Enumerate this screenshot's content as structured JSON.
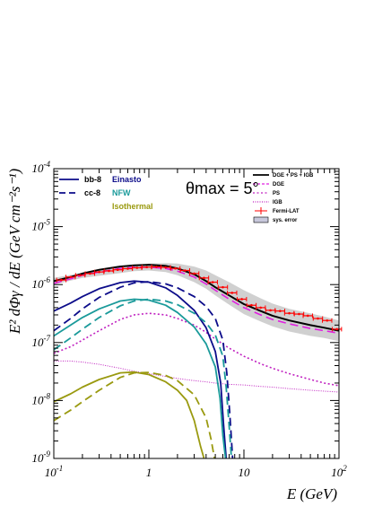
{
  "chart_data": {
    "type": "line",
    "xscale": "log",
    "yscale": "log",
    "xlim": [
      0.1,
      100
    ],
    "ylim": [
      1e-09,
      0.0001
    ],
    "xlabel": "E (GeV)",
    "ylabel": "E² dΦγ / dE (GeV cm⁻²s⁻¹)",
    "annotation": "θmax = 5°",
    "x_ticks": [
      {
        "v": 0.1,
        "base": "10",
        "exp": "-1"
      },
      {
        "v": 1,
        "base": "1",
        "exp": ""
      },
      {
        "v": 10,
        "base": "10",
        "exp": ""
      },
      {
        "v": 100,
        "base": "10",
        "exp": "2"
      }
    ],
    "y_ticks": [
      {
        "v": 1e-09,
        "base": "10",
        "exp": "-9"
      },
      {
        "v": 1e-08,
        "base": "10",
        "exp": "-8"
      },
      {
        "v": 1e-07,
        "base": "10",
        "exp": "-7"
      },
      {
        "v": 1e-06,
        "base": "10",
        "exp": "-6"
      },
      {
        "v": 1e-05,
        "base": "10",
        "exp": "-5"
      },
      {
        "v": 0.0001,
        "base": "10",
        "exp": "-4"
      }
    ],
    "legend_left": {
      "styles": [
        {
          "label": "bb-8",
          "dash": "solid"
        },
        {
          "label": "cc-8",
          "dash": "dashed"
        }
      ],
      "profiles": [
        {
          "label": "Einasto",
          "color": "#0c0c8a"
        },
        {
          "label": "NFW",
          "color": "#1a9a9a"
        },
        {
          "label": "Isothermal",
          "color": "#9a9a10"
        }
      ]
    },
    "legend_right": [
      {
        "label": "DGE + PS + IGB",
        "kind": "line",
        "color": "#000000",
        "dash": "solid"
      },
      {
        "label": "DGE",
        "kind": "line",
        "color": "#e020e0",
        "dash": "dashed"
      },
      {
        "label": "PS",
        "kind": "line",
        "color": "#c020c0",
        "dash": "dotted"
      },
      {
        "label": "IGB",
        "kind": "line",
        "color": "#c020c0",
        "dash": "finedot"
      },
      {
        "label": "Fermi-LAT",
        "kind": "marker",
        "color": "#ff0000"
      },
      {
        "label": "sys. error",
        "kind": "box",
        "color": "#c8c8dc"
      }
    ],
    "series": [
      {
        "name": "DGE + PS + IGB",
        "color": "#000000",
        "dash": "solid",
        "width": 2,
        "x": [
          0.1,
          0.15,
          0.2,
          0.3,
          0.5,
          0.7,
          1,
          1.5,
          2,
          3,
          4,
          5,
          7,
          10,
          15,
          20,
          30,
          50,
          70,
          100
        ],
        "y": [
          1.15e-06,
          1.35e-06,
          1.55e-06,
          1.8e-06,
          2.05e-06,
          2.15e-06,
          2.2e-06,
          2.1e-06,
          1.9e-06,
          1.5e-06,
          1.15e-06,
          9e-07,
          6.5e-07,
          4.6e-07,
          3.5e-07,
          2.9e-07,
          2.4e-07,
          2e-07,
          1.8e-07,
          1.6e-07
        ]
      },
      {
        "name": "DGE",
        "color": "#e020e0",
        "dash": "dashed",
        "width": 1.6,
        "x": [
          0.1,
          0.15,
          0.2,
          0.3,
          0.5,
          0.7,
          1,
          1.5,
          2,
          3,
          4,
          5,
          7,
          10,
          15,
          20,
          30,
          50,
          70,
          100
        ],
        "y": [
          1.05e-06,
          1.25e-06,
          1.45e-06,
          1.65e-06,
          1.9e-06,
          1.98e-06,
          2e-06,
          1.9e-06,
          1.7e-06,
          1.35e-06,
          1.02e-06,
          8e-07,
          5.6e-07,
          4e-07,
          3e-07,
          2.5e-07,
          2.1e-07,
          1.75e-07,
          1.6e-07,
          1.45e-07
        ]
      },
      {
        "name": "PS",
        "color": "#c020c0",
        "dash": "dotted",
        "width": 1.6,
        "x": [
          0.1,
          0.15,
          0.2,
          0.3,
          0.5,
          0.7,
          1,
          1.5,
          2,
          3,
          4,
          5,
          7,
          10,
          15,
          20,
          30,
          50,
          70,
          100
        ],
        "y": [
          6.5e-08,
          8.5e-08,
          1.1e-07,
          1.6e-07,
          2.5e-07,
          3e-07,
          3.2e-07,
          3e-07,
          2.6e-07,
          2e-07,
          1.5e-07,
          1.15e-07,
          8e-08,
          5.8e-08,
          4.3e-08,
          3.6e-08,
          2.9e-08,
          2.3e-08,
          2e-08,
          1.8e-08
        ]
      },
      {
        "name": "IGB",
        "color": "#c020c0",
        "dash": "finedot",
        "width": 1,
        "x": [
          0.1,
          0.15,
          0.2,
          0.3,
          0.5,
          0.7,
          1,
          1.5,
          2,
          3,
          4,
          5,
          7,
          10,
          15,
          20,
          30,
          50,
          70,
          100
        ],
        "y": [
          4.8e-08,
          4.8e-08,
          4.6e-08,
          4.2e-08,
          3.6e-08,
          3.2e-08,
          2.9e-08,
          2.6e-08,
          2.4e-08,
          2.2e-08,
          2.1e-08,
          2e-08,
          1.9e-08,
          1.85e-08,
          1.75e-08,
          1.7e-08,
          1.6e-08,
          1.5e-08,
          1.45e-08,
          1.4e-08
        ]
      },
      {
        "name": "bb-8 Einasto",
        "color": "#0c0c8a",
        "dash": "solid",
        "width": 1.8,
        "x": [
          0.1,
          0.15,
          0.2,
          0.3,
          0.5,
          0.7,
          1,
          1.5,
          2,
          3,
          4,
          5,
          5.7,
          6.1,
          6.5
        ],
        "y": [
          3.5e-07,
          4.8e-07,
          6.2e-07,
          8.5e-07,
          1.08e-06,
          1.15e-06,
          1.1e-06,
          8.8e-07,
          6.5e-07,
          3.6e-07,
          1.8e-07,
          7e-08,
          2e-08,
          4e-09,
          1e-09
        ]
      },
      {
        "name": "cc-8 Einasto",
        "color": "#0c0c8a",
        "dash": "dashed",
        "width": 1.8,
        "x": [
          0.1,
          0.15,
          0.2,
          0.3,
          0.5,
          0.7,
          1,
          1.5,
          2,
          3,
          4,
          5,
          6,
          6.6,
          7.1,
          7.6
        ],
        "y": [
          1.6e-07,
          2.6e-07,
          3.8e-07,
          6e-07,
          9e-07,
          1.07e-06,
          1.12e-06,
          1.03e-06,
          8.8e-07,
          6.2e-07,
          4.2e-07,
          2.6e-07,
          1.1e-07,
          3e-08,
          6e-09,
          1e-09
        ]
      },
      {
        "name": "bb-8 NFW",
        "color": "#1a9a9a",
        "dash": "solid",
        "width": 1.8,
        "x": [
          0.1,
          0.15,
          0.2,
          0.3,
          0.5,
          0.7,
          1,
          1.5,
          2,
          3,
          4,
          5,
          5.6,
          6.0,
          6.4
        ],
        "y": [
          1.3e-07,
          2e-07,
          2.7e-07,
          3.8e-07,
          5.2e-07,
          5.6e-07,
          5.4e-07,
          4.4e-07,
          3.3e-07,
          1.85e-07,
          9.5e-08,
          3.8e-08,
          1.1e-08,
          2.5e-09,
          1e-09
        ]
      },
      {
        "name": "cc-8 NFW",
        "color": "#1a9a9a",
        "dash": "dashed",
        "width": 1.8,
        "x": [
          0.1,
          0.15,
          0.2,
          0.3,
          0.5,
          0.7,
          1,
          1.5,
          2,
          3,
          4,
          5,
          6,
          6.5,
          7.0,
          7.4
        ],
        "y": [
          7.5e-08,
          1.2e-07,
          1.7e-07,
          2.7e-07,
          4.3e-07,
          5.2e-07,
          5.6e-07,
          5.2e-07,
          4.5e-07,
          3.2e-07,
          2.2e-07,
          1.35e-07,
          5.8e-08,
          1.7e-08,
          3.5e-09,
          1e-09
        ]
      },
      {
        "name": "bb-8 Isothermal",
        "color": "#9a9a10",
        "dash": "solid",
        "width": 1.8,
        "x": [
          0.1,
          0.15,
          0.2,
          0.3,
          0.5,
          0.7,
          1,
          1.5,
          2,
          2.5,
          3,
          3.5,
          3.8
        ],
        "y": [
          9.5e-09,
          1.3e-08,
          1.7e-08,
          2.3e-08,
          3e-08,
          3.1e-08,
          2.8e-08,
          2.1e-08,
          1.5e-08,
          1e-08,
          4.5e-09,
          1.6e-09,
          1e-09
        ]
      },
      {
        "name": "cc-8 Isothermal",
        "color": "#9a9a10",
        "dash": "dashed",
        "width": 1.8,
        "x": [
          0.1,
          0.15,
          0.2,
          0.3,
          0.5,
          0.7,
          1,
          1.5,
          2,
          3,
          4,
          4.5,
          4.9
        ],
        "y": [
          4.5e-09,
          6.8e-09,
          9.5e-09,
          1.5e-08,
          2.5e-08,
          3e-08,
          3.05e-08,
          2.7e-08,
          2.2e-08,
          1.25e-08,
          5e-09,
          2.2e-09,
          1e-09
        ]
      }
    ],
    "band": {
      "name": "sys. error",
      "x": [
        0.1,
        0.2,
        0.4,
        0.7,
        1,
        1.5,
        2,
        3,
        4,
        5,
        7,
        10,
        15,
        20,
        30,
        50,
        70,
        100
      ],
      "low": [
        1e-06,
        1.3e-06,
        1.5e-06,
        1.7e-06,
        1.75e-06,
        1.65e-06,
        1.45e-06,
        1.1e-06,
        8.5e-07,
        6.5e-07,
        4.5e-07,
        3.1e-07,
        2.3e-07,
        1.9e-07,
        1.55e-07,
        1.3e-07,
        1.2e-07,
        1.05e-07
      ],
      "high": [
        1.3e-06,
        1.6e-06,
        1.85e-06,
        2.1e-06,
        2.3e-06,
        2.35e-06,
        2.3e-06,
        2.05e-06,
        1.75e-06,
        1.45e-06,
        1.1e-06,
        8e-07,
        5.8e-07,
        4.7e-07,
        3.8e-07,
        3.2e-07,
        2.8e-07,
        2.4e-07
      ]
    },
    "fermi_lat": {
      "name": "Fermi-LAT",
      "x": [
        0.12,
        0.15,
        0.19,
        0.24,
        0.3,
        0.38,
        0.47,
        0.6,
        0.75,
        0.95,
        1.2,
        1.5,
        1.9,
        2.4,
        3.0,
        3.8,
        4.7,
        6.0,
        7.5,
        9.5,
        12,
        15,
        19,
        24,
        30,
        38,
        47,
        60,
        75,
        95
      ],
      "y": [
        1.2e-06,
        1.35e-06,
        1.45e-06,
        1.55e-06,
        1.65e-06,
        1.72e-06,
        1.8e-06,
        1.88e-06,
        1.95e-06,
        2e-06,
        2.02e-06,
        1.98e-06,
        1.9e-06,
        1.75e-06,
        1.55e-06,
        1.3e-06,
        1.1e-06,
        9e-07,
        7.2e-07,
        5.6e-07,
        4.4e-07,
        4e-07,
        3.6e-07,
        3.5e-07,
        3.2e-07,
        3.1e-07,
        2.9e-07,
        2.6e-07,
        2.4e-07,
        1.7e-07
      ]
    }
  }
}
